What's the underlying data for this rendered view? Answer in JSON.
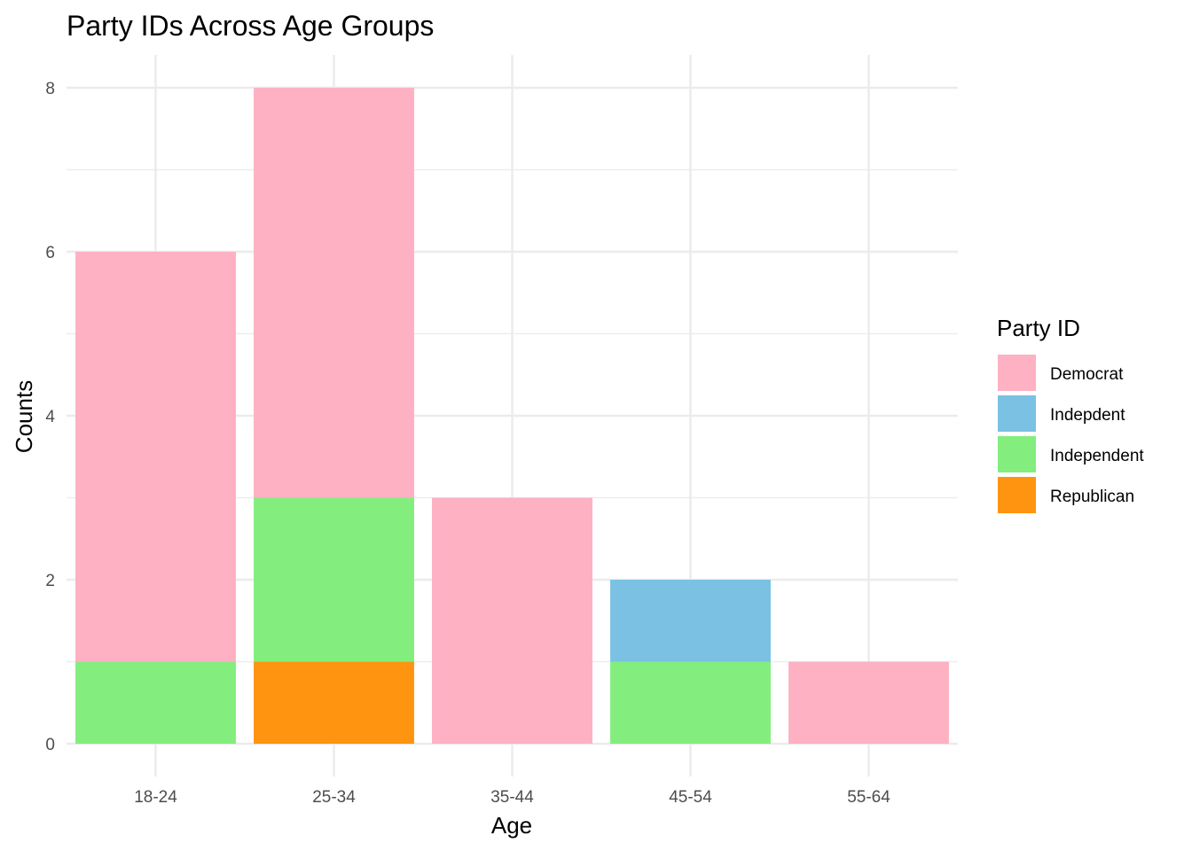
{
  "chart_data": {
    "type": "bar",
    "stacked": true,
    "title": "Party IDs Across Age Groups",
    "xlabel": "Age",
    "ylabel": "Counts",
    "categories": [
      "18-24",
      "25-34",
      "35-44",
      "45-54",
      "55-64"
    ],
    "ylim": [
      0,
      8.4
    ],
    "yticks": [
      0,
      2,
      4,
      6,
      8
    ],
    "grid": true,
    "legend": {
      "title": "Party ID",
      "position": "right"
    },
    "series": [
      {
        "name": "Republican",
        "color": "#FF9410",
        "values": [
          0,
          1,
          0,
          0,
          0
        ]
      },
      {
        "name": "Independent",
        "color": "#83EE7E",
        "values": [
          1,
          2,
          0,
          1,
          0
        ]
      },
      {
        "name": "Indepdent",
        "color": "#7AC1E4",
        "values": [
          0,
          0,
          0,
          1,
          0
        ]
      },
      {
        "name": "Democrat",
        "color": "#FDB1C3",
        "values": [
          5,
          5,
          3,
          0,
          1
        ]
      }
    ],
    "legend_order": [
      "Democrat",
      "Indepdent",
      "Independent",
      "Republican"
    ]
  }
}
